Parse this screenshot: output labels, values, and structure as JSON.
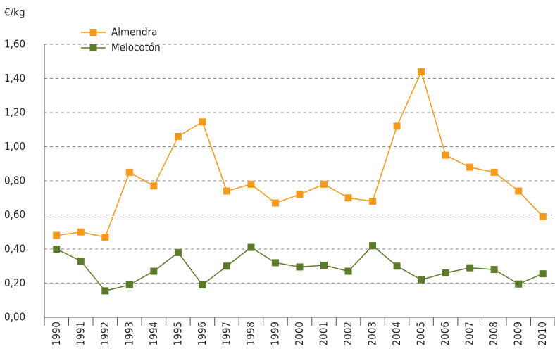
{
  "chart_data": {
    "type": "line",
    "y_axis_label": "€/kg",
    "categories": [
      "1990",
      "1991",
      "1992",
      "1993",
      "1994",
      "1995",
      "1996",
      "1997",
      "1998",
      "1999",
      "2000",
      "2001",
      "2002",
      "2003",
      "2004",
      "2005",
      "2006",
      "2007",
      "2008",
      "2009",
      "2010"
    ],
    "series": [
      {
        "name": "Almendra",
        "color": "#f39a1e",
        "values": [
          0.48,
          0.5,
          0.47,
          0.85,
          0.77,
          1.06,
          1.145,
          0.74,
          0.78,
          0.67,
          0.72,
          0.78,
          0.7,
          0.68,
          1.12,
          1.44,
          0.95,
          0.88,
          0.85,
          0.74,
          0.59
        ]
      },
      {
        "name": "Melocotón",
        "color": "#5b7b2b",
        "values": [
          0.4,
          0.33,
          0.155,
          0.19,
          0.27,
          0.38,
          0.19,
          0.3,
          0.41,
          0.32,
          0.295,
          0.305,
          0.27,
          0.42,
          0.3,
          0.22,
          0.26,
          0.29,
          0.28,
          0.195,
          0.255
        ]
      }
    ],
    "ylim": [
      0,
      1.6
    ],
    "yticks": [
      {
        "value": 0,
        "label": "0,00"
      },
      {
        "value": 0.2,
        "label": "0,20"
      },
      {
        "value": 0.4,
        "label": "0,40"
      },
      {
        "value": 0.6,
        "label": "0,60"
      },
      {
        "value": 0.8,
        "label": "0,80"
      },
      {
        "value": 1.0,
        "label": "1,00"
      },
      {
        "value": 1.2,
        "label": "1,20"
      },
      {
        "value": 1.4,
        "label": "1,40"
      },
      {
        "value": 1.6,
        "label": "1,60"
      }
    ],
    "grid": true,
    "legend": "top-left"
  }
}
